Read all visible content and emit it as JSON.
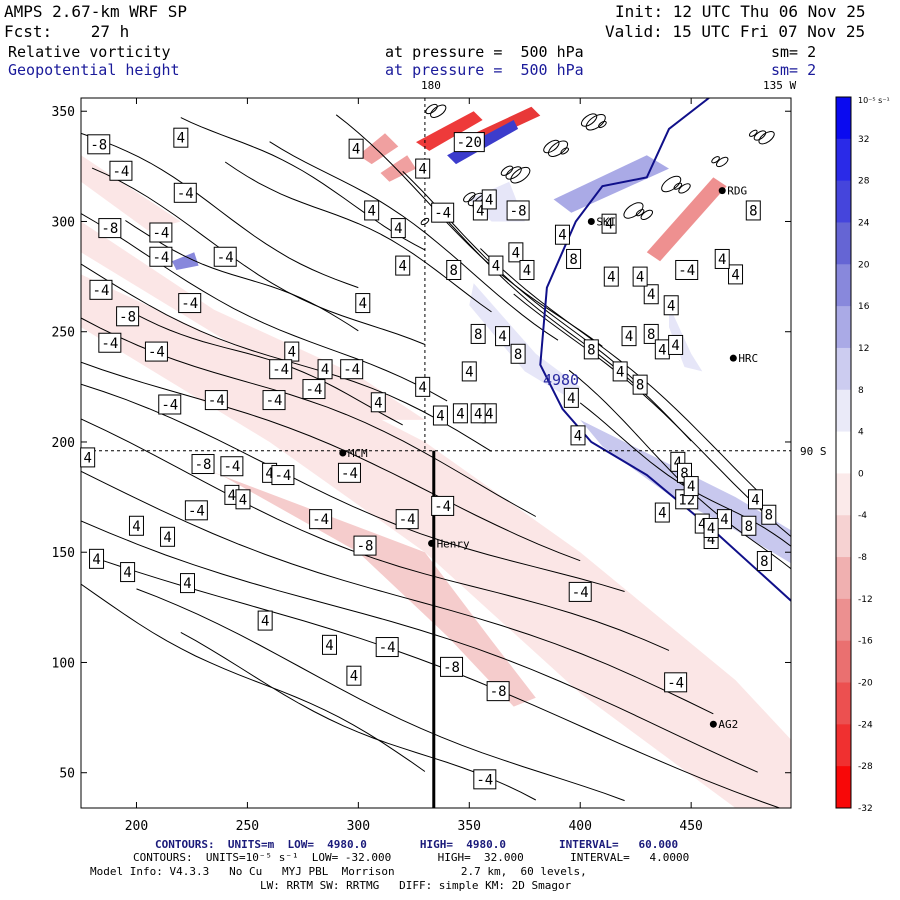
{
  "header": {
    "model": "AMPS 2.67-km WRF SP",
    "fcst": "Fcst:    27 h",
    "init": "Init: 12 UTC Thu 06 Nov 25",
    "valid": "Valid: 15 UTC Fri 07 Nov 25",
    "field1": "Relative vorticity",
    "field2": "Geopotential height",
    "pressure1": "at pressure =  500 hPa",
    "pressure2": "at pressure =  500 hPa",
    "sm1": "sm= 2",
    "sm2": "sm= 2",
    "lon_label_180": "180",
    "lon_label_135w": "135 W",
    "lat_label_90s": "90 S"
  },
  "footer": {
    "contours1": "CONTOURS:  UNITS=m  LOW=  4980.0        HIGH=  4980.0        INTERVAL=   60.000",
    "contours2": "CONTOURS:  UNITS=10⁻⁵ s⁻¹  LOW= -32.000       HIGH=  32.000       INTERVAL=   4.0000",
    "model_info": "Model Info: V4.3.3   No Cu   MYJ PBL  Morrison          2.7 km,  60 levels,",
    "model_info2": "LW: RRTM SW: RRTMG   DIFF: simple KM: 2D Smagor"
  },
  "colorbar": {
    "unit": "10⁻⁵ s⁻¹",
    "ticks": [
      "32",
      "28",
      "24",
      "20",
      "16",
      "12",
      "8",
      "4",
      "0",
      "-4",
      "-8",
      "-12",
      "-16",
      "-20",
      "-24",
      "-28",
      "-32"
    ],
    "colors": [
      "#0a0af0",
      "#2a2ae8",
      "#4545dc",
      "#6565d4",
      "#8888dc",
      "#aaaae6",
      "#ccccf0",
      "#eaeaf8",
      "#ffffff",
      "#fbeaea",
      "#f6d2d2",
      "#f0b0b0",
      "#ec9090",
      "#ea7070",
      "#ec5050",
      "#f03030",
      "#f80808"
    ]
  },
  "stations": [
    {
      "name": "MCM",
      "x": 293,
      "y": 195
    },
    {
      "name": "Henry",
      "x": 333,
      "y": 154
    },
    {
      "name": "AG2",
      "x": 460,
      "y": 72
    },
    {
      "name": "HRC",
      "x": 469,
      "y": 238
    },
    {
      "name": "RDG",
      "x": 464,
      "y": 314
    },
    {
      "name": "SKI",
      "x": 405,
      "y": 300
    }
  ],
  "chart_data": {
    "type": "contour",
    "title": "AMPS 2.67-km WRF SP — Relative vorticity and Geopotential height at 500 hPa",
    "xlabel": "",
    "ylabel": "",
    "xlim": [
      175,
      495
    ],
    "ylim": [
      34,
      356
    ],
    "x_ticks": [
      "200",
      "250",
      "300",
      "350",
      "400",
      "450"
    ],
    "y_ticks": [
      "50",
      "100",
      "150",
      "200",
      "250",
      "300",
      "350"
    ],
    "height_contour": {
      "value": 4980,
      "label": "4980"
    },
    "cross_section_x": 334,
    "reference_lines": {
      "x": 330,
      "y": 196
    },
    "vorticity_labels": [
      {
        "v": "-8",
        "x": 183,
        "y": 335
      },
      {
        "v": "4",
        "x": 220,
        "y": 338
      },
      {
        "v": "-4",
        "x": 193,
        "y": 323
      },
      {
        "v": "-4",
        "x": 222,
        "y": 313
      },
      {
        "v": "4",
        "x": 299,
        "y": 333
      },
      {
        "v": "4",
        "x": 329,
        "y": 324
      },
      {
        "v": "-20",
        "x": 350,
        "y": 336
      },
      {
        "v": "-8",
        "x": 188,
        "y": 297
      },
      {
        "v": "-4",
        "x": 211,
        "y": 295
      },
      {
        "v": "-4",
        "x": 211,
        "y": 284
      },
      {
        "v": "-4",
        "x": 240,
        "y": 284
      },
      {
        "v": "4",
        "x": 306,
        "y": 305
      },
      {
        "v": "4",
        "x": 318,
        "y": 297
      },
      {
        "v": "-4",
        "x": 338,
        "y": 304
      },
      {
        "v": "4",
        "x": 355,
        "y": 305
      },
      {
        "v": "-8",
        "x": 372,
        "y": 305
      },
      {
        "v": "4",
        "x": 371,
        "y": 286
      },
      {
        "v": "4",
        "x": 359,
        "y": 310
      },
      {
        "v": "4",
        "x": 320,
        "y": 280
      },
      {
        "v": "8",
        "x": 343,
        "y": 278
      },
      {
        "v": "4",
        "x": 362,
        "y": 280
      },
      {
        "v": "4",
        "x": 376,
        "y": 278
      },
      {
        "v": "-4",
        "x": 184,
        "y": 269
      },
      {
        "v": "-8",
        "x": 196,
        "y": 257
      },
      {
        "v": "-4",
        "x": 224,
        "y": 263
      },
      {
        "v": "4",
        "x": 302,
        "y": 263
      },
      {
        "v": "-4",
        "x": 188,
        "y": 245
      },
      {
        "v": "-4",
        "x": 209,
        "y": 241
      },
      {
        "v": "4",
        "x": 270,
        "y": 241
      },
      {
        "v": "-4",
        "x": 297,
        "y": 233
      },
      {
        "v": "-4",
        "x": 265,
        "y": 233
      },
      {
        "v": "4",
        "x": 285,
        "y": 233
      },
      {
        "v": "-4",
        "x": 215,
        "y": 217
      },
      {
        "v": "-4",
        "x": 236,
        "y": 219
      },
      {
        "v": "-4",
        "x": 262,
        "y": 219
      },
      {
        "v": "-4",
        "x": 280,
        "y": 224
      },
      {
        "v": "4",
        "x": 309,
        "y": 218
      },
      {
        "v": "4",
        "x": 329,
        "y": 225
      },
      {
        "v": "4",
        "x": 359,
        "y": 213
      },
      {
        "v": "8",
        "x": 354,
        "y": 249
      },
      {
        "v": "4",
        "x": 365,
        "y": 248
      },
      {
        "v": "8",
        "x": 372,
        "y": 240
      },
      {
        "v": "4",
        "x": 350,
        "y": 232
      },
      {
        "v": "4",
        "x": 337,
        "y": 212
      },
      {
        "v": "4",
        "x": 346,
        "y": 213
      },
      {
        "v": "4",
        "x": 354,
        "y": 213
      },
      {
        "v": "4",
        "x": 178,
        "y": 193
      },
      {
        "v": "-8",
        "x": 230,
        "y": 190
      },
      {
        "v": "-4",
        "x": 243,
        "y": 189
      },
      {
        "v": "4",
        "x": 260,
        "y": 186
      },
      {
        "v": "-4",
        "x": 266,
        "y": 185
      },
      {
        "v": "-4",
        "x": 296,
        "y": 186
      },
      {
        "v": "-4",
        "x": 322,
        "y": 165
      },
      {
        "v": "-4",
        "x": 338,
        "y": 171
      },
      {
        "v": "4",
        "x": 243,
        "y": 176
      },
      {
        "v": "4",
        "x": 248,
        "y": 174
      },
      {
        "v": "-4",
        "x": 227,
        "y": 169
      },
      {
        "v": "-4",
        "x": 283,
        "y": 165
      },
      {
        "v": "-8",
        "x": 303,
        "y": 153
      },
      {
        "v": "4",
        "x": 200,
        "y": 162
      },
      {
        "v": "4",
        "x": 214,
        "y": 157
      },
      {
        "v": "4",
        "x": 182,
        "y": 147
      },
      {
        "v": "4",
        "x": 196,
        "y": 141
      },
      {
        "v": "4",
        "x": 223,
        "y": 136
      },
      {
        "v": "-4",
        "x": 400,
        "y": 132
      },
      {
        "v": "4",
        "x": 258,
        "y": 119
      },
      {
        "v": "4",
        "x": 287,
        "y": 108
      },
      {
        "v": "-4",
        "x": 313,
        "y": 107
      },
      {
        "v": "-8",
        "x": 342,
        "y": 98
      },
      {
        "v": "4",
        "x": 298,
        "y": 94
      },
      {
        "v": "-8",
        "x": 363,
        "y": 87
      },
      {
        "v": "-4",
        "x": 443,
        "y": 91
      },
      {
        "v": "-4",
        "x": 357,
        "y": 47
      },
      {
        "v": "4",
        "x": 418,
        "y": 232
      },
      {
        "v": "8",
        "x": 427,
        "y": 226
      },
      {
        "v": "4",
        "x": 444,
        "y": 191
      },
      {
        "v": "8",
        "x": 447,
        "y": 186
      },
      {
        "v": "12",
        "x": 448,
        "y": 174
      },
      {
        "v": "4",
        "x": 450,
        "y": 180
      },
      {
        "v": "4",
        "x": 437,
        "y": 168
      },
      {
        "v": "4",
        "x": 465,
        "y": 165
      },
      {
        "v": "8",
        "x": 485,
        "y": 167
      },
      {
        "v": "4",
        "x": 455,
        "y": 163
      },
      {
        "v": "4",
        "x": 479,
        "y": 174
      },
      {
        "v": "8",
        "x": 476,
        "y": 162
      },
      {
        "v": "4",
        "x": 459,
        "y": 156
      },
      {
        "v": "8",
        "x": 483,
        "y": 146
      },
      {
        "v": "4",
        "x": 459,
        "y": 161
      },
      {
        "v": "4",
        "x": 399,
        "y": 203
      },
      {
        "v": "4",
        "x": 396,
        "y": 220
      },
      {
        "v": "8",
        "x": 405,
        "y": 242
      },
      {
        "v": "4",
        "x": 422,
        "y": 248
      },
      {
        "v": "8",
        "x": 432,
        "y": 249
      },
      {
        "v": "4",
        "x": 437,
        "y": 242
      },
      {
        "v": "4",
        "x": 443,
        "y": 244
      },
      {
        "v": "8",
        "x": 478,
        "y": 305
      },
      {
        "v": "4",
        "x": 432,
        "y": 267
      },
      {
        "v": "4",
        "x": 441,
        "y": 262
      },
      {
        "v": "-4",
        "x": 448,
        "y": 278
      },
      {
        "v": "4",
        "x": 427,
        "y": 275
      },
      {
        "v": "4",
        "x": 414,
        "y": 275
      },
      {
        "v": "8",
        "x": 397,
        "y": 283
      },
      {
        "v": "4",
        "x": 392,
        "y": 294
      },
      {
        "v": "4",
        "x": 413,
        "y": 299
      },
      {
        "v": "4",
        "x": 470,
        "y": 276
      },
      {
        "v": "4",
        "x": 464,
        "y": 283
      }
    ]
  }
}
